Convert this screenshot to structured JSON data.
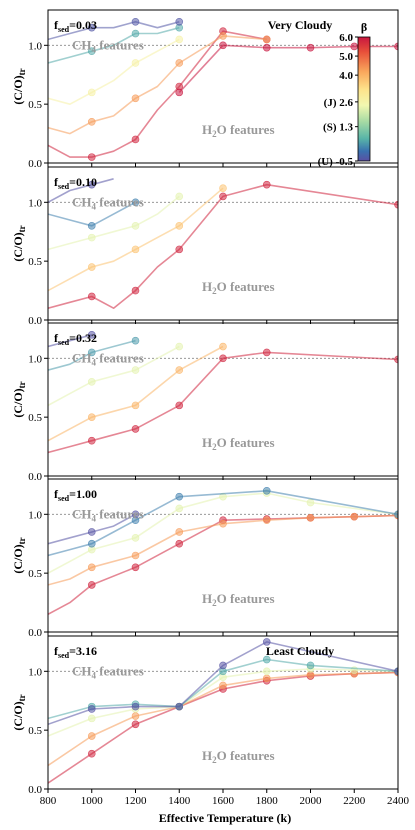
{
  "chart_data": {
    "type": "line",
    "xlabel": "Effective Temperature (k)",
    "ylabel": "(C/O)",
    "ylabel_sub": "tr",
    "xlim": [
      800,
      2400
    ],
    "ylim": [
      0.0,
      1.3
    ],
    "xticks": [
      "800",
      "1000",
      "1200",
      "1400",
      "1600",
      "1800",
      "2000",
      "2200",
      "2400"
    ],
    "yticks": [
      "0.0",
      "0.5",
      "1.0"
    ],
    "reference_line": 1.0,
    "colorbar": {
      "label": "β",
      "range": [
        -0.5,
        6.0
      ],
      "ticks": [
        {
          "value": 6.0,
          "label": "6.0"
        },
        {
          "value": 5.0,
          "label": "5.0"
        },
        {
          "value": 4.0,
          "label": "4.0"
        },
        {
          "value": 2.6,
          "label": "(J)  2.6"
        },
        {
          "value": 1.3,
          "label": "(S)  1.3"
        },
        {
          "value": -0.5,
          "label": "(U) -0.5"
        }
      ],
      "colors": [
        "#c8163f",
        "#e8503a",
        "#f9a75c",
        "#fde28a",
        "#f2f8b0",
        "#a8dba4",
        "#58b4a8",
        "#3a72b0",
        "#5a4fa2"
      ]
    },
    "panels": [
      {
        "fsed_label": "f",
        "fsed_sub": "sed",
        "fsed_value": "=0.03",
        "tag": "Very Cloudy",
        "ch4": "CH",
        "ch4_sub": "4",
        "ch4_tail": " features",
        "h2o": "H",
        "h2o_sub": "2",
        "h2o_tail": "O features"
      },
      {
        "fsed_label": "f",
        "fsed_sub": "sed",
        "fsed_value": "=0.10",
        "tag": "",
        "ch4": "CH",
        "ch4_sub": "4",
        "ch4_tail": " features",
        "h2o": "H",
        "h2o_sub": "2",
        "h2o_tail": "O features"
      },
      {
        "fsed_label": "f",
        "fsed_sub": "sed",
        "fsed_value": "=0.32",
        "tag": "",
        "ch4": "CH",
        "ch4_sub": "4",
        "ch4_tail": " features",
        "h2o": "H",
        "h2o_sub": "2",
        "h2o_tail": "O features"
      },
      {
        "fsed_label": "f",
        "fsed_sub": "sed",
        "fsed_value": "=1.00",
        "tag": "",
        "ch4": "CH",
        "ch4_sub": "4",
        "ch4_tail": " features",
        "h2o": "H",
        "h2o_sub": "2",
        "h2o_tail": "O features"
      },
      {
        "fsed_label": "f",
        "fsed_sub": "sed",
        "fsed_value": "=3.16",
        "tag": "Least Cloudy",
        "ch4": "CH",
        "ch4_sub": "4",
        "ch4_tail": " features",
        "h2o": "H",
        "h2o_sub": "2",
        "h2o_tail": "O features"
      }
    ],
    "series_approx": [
      {
        "panel": 0,
        "beta": 5.8,
        "x": [
          800,
          900,
          1000,
          1100,
          1200,
          1300,
          1400,
          1600,
          1800
        ],
        "y": [
          0.15,
          0.05,
          0.05,
          0.1,
          0.2,
          0.45,
          0.65,
          1.12,
          1.05
        ]
      },
      {
        "panel": 0,
        "beta": 4.5,
        "x": [
          800,
          900,
          1000,
          1100,
          1200,
          1300,
          1400,
          1600,
          1800
        ],
        "y": [
          0.3,
          0.25,
          0.35,
          0.4,
          0.55,
          0.65,
          0.85,
          1.08,
          1.05
        ]
      },
      {
        "panel": 0,
        "beta": 3.0,
        "x": [
          800,
          900,
          1000,
          1100,
          1200,
          1300,
          1400
        ],
        "y": [
          0.55,
          0.5,
          0.6,
          0.7,
          0.85,
          0.95,
          1.05
        ]
      },
      {
        "panel": 0,
        "beta": 1.0,
        "x": [
          800,
          900,
          1000,
          1100,
          1200,
          1300,
          1400
        ],
        "y": [
          0.85,
          0.9,
          0.95,
          1.0,
          1.1,
          1.1,
          1.15
        ]
      },
      {
        "panel": 0,
        "beta": -0.3,
        "x": [
          800,
          900,
          1000,
          1100,
          1200,
          1300,
          1400
        ],
        "y": [
          1.05,
          1.1,
          1.15,
          1.15,
          1.2,
          1.15,
          1.2
        ]
      },
      {
        "panel": 0,
        "beta": 6.0,
        "x": [
          1400,
          1600,
          1800,
          2000,
          2200,
          2400
        ],
        "y": [
          0.6,
          1.0,
          0.98,
          0.98,
          0.99,
          0.99
        ]
      },
      {
        "panel": 1,
        "beta": 5.8,
        "x": [
          800,
          900,
          1000,
          1100,
          1200,
          1300,
          1400,
          1600,
          1800,
          2400
        ],
        "y": [
          0.1,
          0.15,
          0.2,
          0.1,
          0.25,
          0.45,
          0.6,
          1.05,
          1.15,
          0.98
        ]
      },
      {
        "panel": 1,
        "beta": 4.0,
        "x": [
          800,
          900,
          1000,
          1100,
          1200,
          1300,
          1400,
          1600
        ],
        "y": [
          0.25,
          0.35,
          0.45,
          0.5,
          0.6,
          0.7,
          0.8,
          1.12
        ]
      },
      {
        "panel": 1,
        "beta": 2.6,
        "x": [
          800,
          900,
          1000,
          1100,
          1200,
          1300,
          1400
        ],
        "y": [
          0.6,
          0.65,
          0.7,
          0.75,
          0.8,
          0.9,
          1.05
        ]
      },
      {
        "panel": 1,
        "beta": 0.5,
        "x": [
          800,
          900,
          1000,
          1100,
          1200
        ],
        "y": [
          0.9,
          0.85,
          0.8,
          0.9,
          1.0
        ]
      },
      {
        "panel": 1,
        "beta": -0.4,
        "x": [
          800,
          900,
          1000,
          1100
        ],
        "y": [
          1.0,
          1.1,
          1.15,
          1.2
        ]
      },
      {
        "panel": 2,
        "beta": 5.8,
        "x": [
          800,
          900,
          1000,
          1100,
          1200,
          1300,
          1400,
          1600,
          1800,
          2400
        ],
        "y": [
          0.2,
          0.25,
          0.3,
          0.35,
          0.4,
          0.5,
          0.6,
          1.0,
          1.05,
          0.99
        ]
      },
      {
        "panel": 2,
        "beta": 4.2,
        "x": [
          800,
          900,
          1000,
          1100,
          1200,
          1300,
          1400,
          1600
        ],
        "y": [
          0.3,
          0.4,
          0.5,
          0.55,
          0.6,
          0.75,
          0.9,
          1.1
        ]
      },
      {
        "panel": 2,
        "beta": 2.6,
        "x": [
          800,
          900,
          1000,
          1100,
          1200,
          1300,
          1400
        ],
        "y": [
          0.6,
          0.7,
          0.8,
          0.85,
          0.9,
          1.0,
          1.1
        ]
      },
      {
        "panel": 2,
        "beta": 0.8,
        "x": [
          800,
          900,
          1000,
          1100,
          1200
        ],
        "y": [
          0.9,
          0.95,
          1.05,
          1.1,
          1.15
        ]
      },
      {
        "panel": 2,
        "beta": -0.4,
        "x": [
          800,
          900,
          1000
        ],
        "y": [
          1.1,
          1.15,
          1.2
        ]
      },
      {
        "panel": 3,
        "beta": 5.8,
        "x": [
          800,
          900,
          1000,
          1200,
          1400,
          1600,
          1800,
          2000,
          2200,
          2400
        ],
        "y": [
          0.15,
          0.25,
          0.4,
          0.55,
          0.75,
          0.95,
          0.96,
          0.97,
          0.98,
          0.99
        ]
      },
      {
        "panel": 3,
        "beta": 4.5,
        "x": [
          800,
          900,
          1000,
          1200,
          1400,
          1600,
          1800,
          2000,
          2200,
          2400
        ],
        "y": [
          0.4,
          0.45,
          0.55,
          0.65,
          0.85,
          0.92,
          0.95,
          0.97,
          0.98,
          0.99
        ]
      },
      {
        "panel": 3,
        "beta": 2.6,
        "x": [
          800,
          900,
          1000,
          1200,
          1400,
          1600,
          1800,
          2000,
          2400
        ],
        "y": [
          0.5,
          0.6,
          0.7,
          0.8,
          1.05,
          1.15,
          1.18,
          1.1,
          1.0
        ]
      },
      {
        "panel": 3,
        "beta": 0.5,
        "x": [
          800,
          900,
          1000,
          1100,
          1200,
          1400,
          1800,
          2400
        ],
        "y": [
          0.65,
          0.7,
          0.75,
          0.85,
          0.95,
          1.15,
          1.2,
          1.0
        ]
      },
      {
        "panel": 3,
        "beta": -0.4,
        "x": [
          800,
          900,
          1000,
          1100,
          1200
        ],
        "y": [
          0.75,
          0.8,
          0.85,
          0.9,
          1.0
        ]
      },
      {
        "panel": 4,
        "beta": 5.8,
        "x": [
          800,
          1000,
          1200,
          1400,
          1600,
          1800,
          2000,
          2200,
          2400
        ],
        "y": [
          0.05,
          0.3,
          0.55,
          0.7,
          0.85,
          0.92,
          0.96,
          0.98,
          0.99
        ]
      },
      {
        "panel": 4,
        "beta": 4.5,
        "x": [
          800,
          1000,
          1200,
          1400,
          1600,
          1800,
          2000,
          2200,
          2400
        ],
        "y": [
          0.2,
          0.45,
          0.62,
          0.7,
          0.88,
          0.94,
          0.97,
          0.98,
          0.99
        ]
      },
      {
        "panel": 4,
        "beta": 2.6,
        "x": [
          800,
          1000,
          1200,
          1400,
          1600,
          1800,
          2000,
          2200,
          2400
        ],
        "y": [
          0.45,
          0.6,
          0.68,
          0.7,
          0.95,
          1.0,
          1.02,
          1.01,
          1.0
        ]
      },
      {
        "panel": 4,
        "beta": 1.0,
        "x": [
          800,
          1000,
          1200,
          1400,
          1600,
          1800,
          2000,
          2400
        ],
        "y": [
          0.6,
          0.7,
          0.72,
          0.7,
          1.0,
          1.1,
          1.05,
          1.0
        ]
      },
      {
        "panel": 4,
        "beta": -0.4,
        "x": [
          800,
          1000,
          1200,
          1400,
          1600,
          1800,
          2400
        ],
        "y": [
          0.55,
          0.68,
          0.7,
          0.7,
          1.05,
          1.25,
          1.0
        ]
      }
    ]
  }
}
